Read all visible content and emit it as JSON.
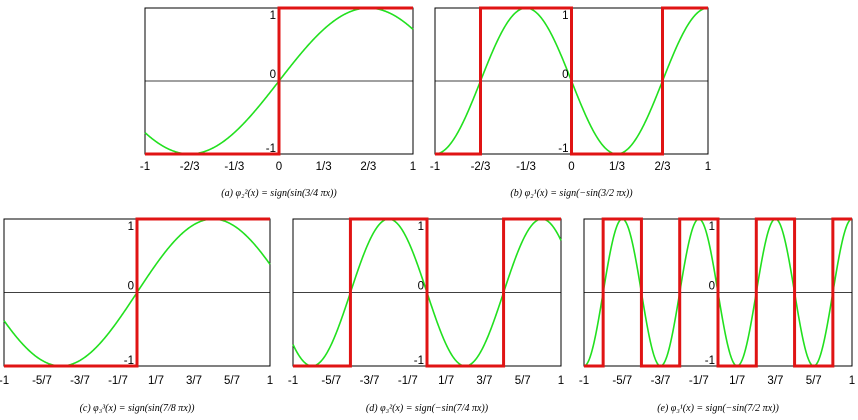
{
  "chart_data": [
    {
      "type": "line",
      "caption": "(a)  φ₂²(x) = sign(sin(3/4 πx))",
      "omega": 0.75,
      "sign_factor": 1,
      "xlim": [
        -1,
        1
      ],
      "ylim": [
        -1,
        1
      ],
      "xticks": [
        {
          "value": -1,
          "label": "-1"
        },
        {
          "value": -0.6667,
          "label": "-2/3"
        },
        {
          "value": -0.3333,
          "label": "-1/3"
        },
        {
          "value": 0,
          "label": "0"
        },
        {
          "value": 0.3333,
          "label": "1/3"
        },
        {
          "value": 0.6667,
          "label": "2/3"
        },
        {
          "value": 1,
          "label": "1"
        }
      ],
      "yticks": [
        {
          "value": 1,
          "label": "1"
        },
        {
          "value": 0,
          "label": "0"
        },
        {
          "value": -1,
          "label": "-1"
        }
      ],
      "series": [
        {
          "function": "sin(3/4 πx)",
          "color": "#22e01f"
        },
        {
          "function": "sign(sin(3/4 πx))",
          "color": "#e01414"
        }
      ]
    },
    {
      "type": "line",
      "caption": "(b)  φ₂¹(x) = sign(−sin(3/2 πx))",
      "omega": 1.5,
      "sign_factor": -1,
      "xlim": [
        -1,
        1
      ],
      "ylim": [
        -1,
        1
      ],
      "xticks": [
        {
          "value": -1,
          "label": "-1"
        },
        {
          "value": -0.6667,
          "label": "-2/3"
        },
        {
          "value": -0.3333,
          "label": "-1/3"
        },
        {
          "value": 0,
          "label": "0"
        },
        {
          "value": 0.3333,
          "label": "1/3"
        },
        {
          "value": 0.6667,
          "label": "2/3"
        },
        {
          "value": 1,
          "label": "1"
        }
      ],
      "yticks": [
        {
          "value": 1,
          "label": "1"
        },
        {
          "value": 0,
          "label": "0"
        },
        {
          "value": -1,
          "label": "-1"
        }
      ],
      "series": [
        {
          "function": "−sin(3/2 πx)",
          "color": "#22e01f"
        },
        {
          "function": "sign(−sin(3/2 πx))",
          "color": "#e01414"
        }
      ]
    },
    {
      "type": "line",
      "caption": "(c)  φ₃³(x) = sign(sin(7/8 πx))",
      "omega": 0.875,
      "sign_factor": 1,
      "xlim": [
        -1,
        1
      ],
      "ylim": [
        -1,
        1
      ],
      "xticks": [
        {
          "value": -1,
          "label": "-1"
        },
        {
          "value": -0.7143,
          "label": "-5/7"
        },
        {
          "value": -0.4286,
          "label": "-3/7"
        },
        {
          "value": -0.1429,
          "label": "-1/7"
        },
        {
          "value": 0.1429,
          "label": "1/7"
        },
        {
          "value": 0.4286,
          "label": "3/7"
        },
        {
          "value": 0.7143,
          "label": "5/7"
        },
        {
          "value": 1,
          "label": "1"
        }
      ],
      "yticks": [
        {
          "value": 1,
          "label": "1"
        },
        {
          "value": 0,
          "label": "0"
        },
        {
          "value": -1,
          "label": "-1"
        }
      ],
      "series": [
        {
          "function": "sin(7/8 πx)",
          "color": "#22e01f"
        },
        {
          "function": "sign(sin(7/8 πx))",
          "color": "#e01414"
        }
      ]
    },
    {
      "type": "line",
      "caption": "(d)  φ₃²(x) = sign(−sin(7/4 πx))",
      "omega": 1.75,
      "sign_factor": -1,
      "xlim": [
        -1,
        1
      ],
      "ylim": [
        -1,
        1
      ],
      "xticks": [
        {
          "value": -1,
          "label": "-1"
        },
        {
          "value": -0.7143,
          "label": "-5/7"
        },
        {
          "value": -0.4286,
          "label": "-3/7"
        },
        {
          "value": -0.1429,
          "label": "-1/7"
        },
        {
          "value": 0.1429,
          "label": "1/7"
        },
        {
          "value": 0.4286,
          "label": "3/7"
        },
        {
          "value": 0.7143,
          "label": "5/7"
        },
        {
          "value": 1,
          "label": "1"
        }
      ],
      "yticks": [
        {
          "value": 1,
          "label": "1"
        },
        {
          "value": 0,
          "label": "0"
        },
        {
          "value": -1,
          "label": "-1"
        }
      ],
      "series": [
        {
          "function": "−sin(7/4 πx)",
          "color": "#22e01f"
        },
        {
          "function": "sign(−sin(7/4 πx))",
          "color": "#e01414"
        }
      ]
    },
    {
      "type": "line",
      "caption": "(e)  φ₃¹(x) = sign(−sin(7/2 πx))",
      "omega": 3.5,
      "sign_factor": -1,
      "xlim": [
        -1,
        1
      ],
      "ylim": [
        -1,
        1
      ],
      "xticks": [
        {
          "value": -1,
          "label": "-1"
        },
        {
          "value": -0.7143,
          "label": "-5/7"
        },
        {
          "value": -0.4286,
          "label": "-3/7"
        },
        {
          "value": -0.1429,
          "label": "-1/7"
        },
        {
          "value": 0.1429,
          "label": "1/7"
        },
        {
          "value": 0.4286,
          "label": "3/7"
        },
        {
          "value": 0.7143,
          "label": "5/7"
        },
        {
          "value": 1,
          "label": "1"
        }
      ],
      "yticks": [
        {
          "value": 1,
          "label": "1"
        },
        {
          "value": 0,
          "label": "0"
        },
        {
          "value": -1,
          "label": "-1"
        }
      ],
      "series": [
        {
          "function": "−sin(7/2 πx)",
          "color": "#22e01f"
        },
        {
          "function": "sign(−sin(7/2 πx))",
          "color": "#e01414"
        }
      ]
    }
  ]
}
